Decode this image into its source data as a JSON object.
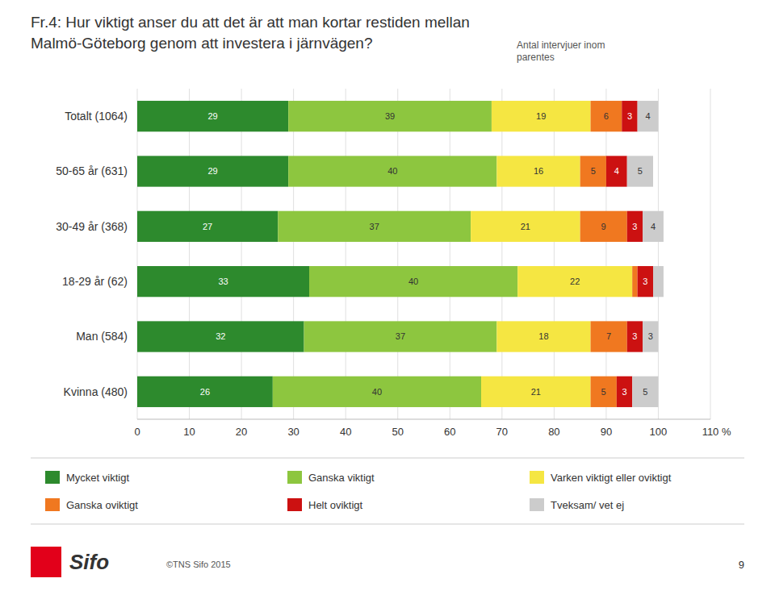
{
  "chart_data": {
    "type": "bar",
    "orientation": "horizontal",
    "stacked": true,
    "title": "Fr.4: Hur viktigt anser du att det är att man kortar restiden mellan\nMalmö-Göteborg genom att investera i järnvägen?",
    "subtitle": "Antal intervjuer inom\nparentes",
    "xlabel": "%",
    "categories": [
      "Totalt (1064)",
      "50-65 år (631)",
      "30-49 år (368)",
      "18-29 år (62)",
      "Man (584)",
      "Kvinna (480)"
    ],
    "series": [
      {
        "name": "Mycket viktigt",
        "color": "#2d8a2d",
        "values": [
          29,
          29,
          27,
          33,
          32,
          26
        ],
        "value_labels": [
          "29",
          "29",
          "27",
          "33",
          "32",
          "26"
        ]
      },
      {
        "name": "Ganska viktigt",
        "color": "#8dc63f",
        "values": [
          39,
          40,
          37,
          40,
          37,
          40
        ],
        "value_labels": [
          "39",
          "40",
          "37",
          "40",
          "37",
          "40"
        ]
      },
      {
        "name": "Varken viktigt eller oviktigt",
        "color": "#f5e642",
        "values": [
          19,
          16,
          21,
          22,
          18,
          21
        ],
        "value_labels": [
          "19",
          "16",
          "21",
          "22",
          "18",
          "21"
        ]
      },
      {
        "name": "Ganska oviktigt",
        "color": "#f07820",
        "values": [
          6,
          5,
          9,
          1,
          7,
          5
        ],
        "value_labels": [
          "6",
          "5",
          "9",
          null,
          "7",
          "5"
        ]
      },
      {
        "name": "Helt oviktigt",
        "color": "#cc1111",
        "values": [
          3,
          4,
          3,
          3,
          3,
          3
        ],
        "value_labels": [
          "3",
          "4",
          "3",
          "3",
          "3",
          "3"
        ]
      },
      {
        "name": "Tveksam/ vet ej",
        "color": "#cccccc",
        "values": [
          4,
          5,
          4,
          2,
          3,
          5
        ],
        "value_labels": [
          "4",
          "5",
          "4",
          null,
          "3",
          "5"
        ]
      }
    ],
    "xlim": [
      0,
      110
    ],
    "xticks": [
      0,
      10,
      20,
      30,
      40,
      50,
      60,
      70,
      80,
      90,
      100,
      110
    ],
    "grid": true,
    "data_labels": true,
    "legend": "bottom",
    "annotations": [
      "Sifo",
      "©TNS Sifo 2015",
      "9"
    ]
  }
}
